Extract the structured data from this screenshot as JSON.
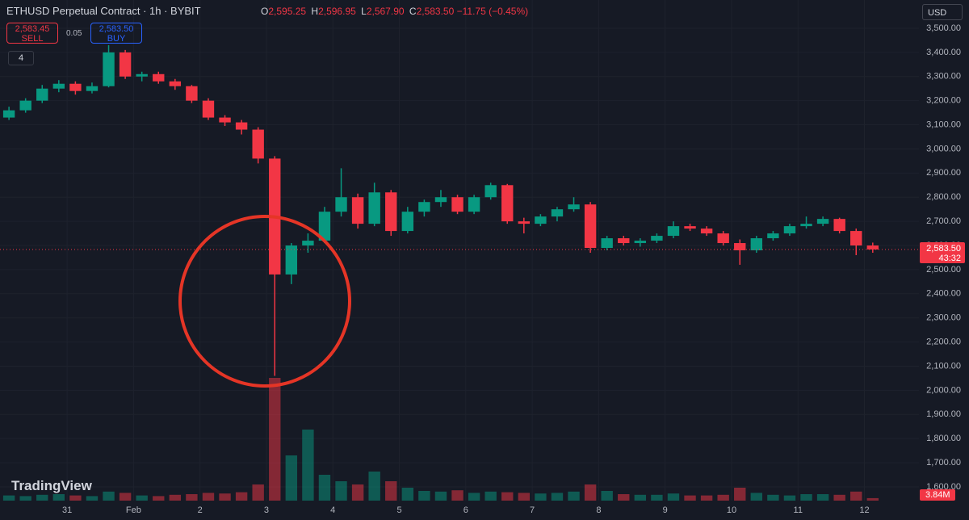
{
  "chart_data": {
    "type": "candlestick",
    "title": "ETHUSD Perpetual Contract · 1h · BYBIT",
    "header": {
      "o": {
        "key": "O",
        "value": "2,595.25"
      },
      "h": {
        "key": "H",
        "value": "2,596.95"
      },
      "l": {
        "key": "L",
        "value": "2,567.90"
      },
      "c": {
        "key": "C",
        "value": "2,583.50"
      },
      "change": "−11.75 (−0.45%)"
    },
    "sell": {
      "price": "2,583.45",
      "label": "SELL"
    },
    "spread": "0.05",
    "buy": {
      "price": "2,583.50",
      "label": "BUY"
    },
    "indicators": "4",
    "currency": "USD",
    "brand": "TradingView",
    "up_color": "#089981",
    "down_color": "#f23645",
    "x": [
      -0.875,
      -0.625,
      -0.375,
      -0.125,
      0.125,
      0.375,
      0.625,
      0.875,
      1.125,
      1.375,
      1.625,
      1.875,
      2.125,
      2.375,
      2.625,
      2.875,
      3.125,
      3.375,
      3.625,
      3.875,
      4.125,
      4.375,
      4.625,
      4.875,
      5.125,
      5.375,
      5.625,
      5.875,
      6.125,
      6.375,
      6.625,
      6.875,
      7.125,
      7.375,
      7.625,
      7.875,
      8.125,
      8.375,
      8.625,
      8.875,
      9.125,
      9.375,
      9.625,
      9.875,
      10.125,
      10.375,
      10.625,
      10.875,
      11.125,
      11.375,
      11.625,
      11.875,
      12.125
    ],
    "ohlc": [
      [
        3130,
        3175,
        3120,
        3160
      ],
      [
        3160,
        3210,
        3150,
        3200
      ],
      [
        3200,
        3265,
        3190,
        3250
      ],
      [
        3250,
        3285,
        3235,
        3270
      ],
      [
        3270,
        3280,
        3225,
        3240
      ],
      [
        3240,
        3275,
        3230,
        3260
      ],
      [
        3260,
        3430,
        3255,
        3400
      ],
      [
        3400,
        3410,
        3290,
        3300
      ],
      [
        3300,
        3320,
        3280,
        3310
      ],
      [
        3310,
        3320,
        3270,
        3280
      ],
      [
        3280,
        3290,
        3245,
        3260
      ],
      [
        3260,
        3265,
        3190,
        3200
      ],
      [
        3200,
        3210,
        3120,
        3130
      ],
      [
        3130,
        3140,
        3095,
        3110
      ],
      [
        3110,
        3120,
        3060,
        3080
      ],
      [
        3080,
        3090,
        2940,
        2960
      ],
      [
        2960,
        2970,
        2060,
        2480
      ],
      [
        2480,
        2610,
        2440,
        2600
      ],
      [
        2600,
        2650,
        2570,
        2620
      ],
      [
        2620,
        2760,
        2610,
        2740
      ],
      [
        2740,
        2920,
        2720,
        2800
      ],
      [
        2800,
        2815,
        2670,
        2690
      ],
      [
        2690,
        2860,
        2680,
        2820
      ],
      [
        2820,
        2830,
        2640,
        2660
      ],
      [
        2660,
        2760,
        2650,
        2740
      ],
      [
        2740,
        2790,
        2720,
        2780
      ],
      [
        2780,
        2830,
        2760,
        2800
      ],
      [
        2800,
        2810,
        2730,
        2740
      ],
      [
        2740,
        2810,
        2730,
        2800
      ],
      [
        2800,
        2860,
        2790,
        2850
      ],
      [
        2850,
        2855,
        2690,
        2700
      ],
      [
        2700,
        2715,
        2650,
        2690
      ],
      [
        2690,
        2730,
        2680,
        2720
      ],
      [
        2720,
        2760,
        2700,
        2750
      ],
      [
        2750,
        2800,
        2740,
        2770
      ],
      [
        2770,
        2780,
        2570,
        2590
      ],
      [
        2590,
        2640,
        2580,
        2630
      ],
      [
        2630,
        2640,
        2600,
        2610
      ],
      [
        2610,
        2630,
        2595,
        2620
      ],
      [
        2620,
        2650,
        2610,
        2640
      ],
      [
        2640,
        2700,
        2630,
        2680
      ],
      [
        2680,
        2690,
        2660,
        2670
      ],
      [
        2670,
        2680,
        2640,
        2650
      ],
      [
        2650,
        2660,
        2600,
        2610
      ],
      [
        2610,
        2625,
        2520,
        2580
      ],
      [
        2580,
        2640,
        2570,
        2630
      ],
      [
        2630,
        2660,
        2620,
        2650
      ],
      [
        2650,
        2690,
        2640,
        2680
      ],
      [
        2680,
        2720,
        2670,
        2690
      ],
      [
        2690,
        2720,
        2680,
        2710
      ],
      [
        2710,
        2715,
        2650,
        2660
      ],
      [
        2660,
        2670,
        2560,
        2600
      ],
      [
        2600,
        2612,
        2570,
        2583.5
      ]
    ],
    "volume": [
      8,
      7,
      9,
      10,
      8,
      7,
      14,
      12,
      8,
      7,
      9,
      10,
      12,
      11,
      13,
      25,
      190,
      70,
      110,
      40,
      30,
      25,
      45,
      30,
      20,
      15,
      14,
      16,
      12,
      14,
      13,
      12,
      11,
      12,
      14,
      25,
      15,
      10,
      9,
      9,
      11,
      8,
      8,
      9,
      20,
      12,
      9,
      8,
      10,
      10,
      9,
      14,
      3.84
    ],
    "volume_label": "3.84M",
    "volume_lim": [
      0,
      200
    ],
    "last_price": {
      "value": 2583.5,
      "label": "2,583.50"
    },
    "countdown": "43:32",
    "xlim": [
      -1.01,
      12.82
    ],
    "xticks": [
      {
        "value": 0,
        "label": "31"
      },
      {
        "value": 1,
        "label": "Feb"
      },
      {
        "value": 2,
        "label": "2"
      },
      {
        "value": 3,
        "label": "3"
      },
      {
        "value": 4,
        "label": "4"
      },
      {
        "value": 5,
        "label": "5"
      },
      {
        "value": 6,
        "label": "6"
      },
      {
        "value": 7,
        "label": "7"
      },
      {
        "value": 8,
        "label": "8"
      },
      {
        "value": 9,
        "label": "9"
      },
      {
        "value": 10,
        "label": "10"
      },
      {
        "value": 11,
        "label": "11"
      },
      {
        "value": 12,
        "label": "12"
      }
    ],
    "ylim": [
      1543,
      3617
    ],
    "yticks": [
      {
        "value": 1600,
        "label": "1,600.00"
      },
      {
        "value": 1700,
        "label": "1,700.00"
      },
      {
        "value": 1800,
        "label": "1,800.00"
      },
      {
        "value": 1900,
        "label": "1,900.00"
      },
      {
        "value": 2000,
        "label": "2,000.00"
      },
      {
        "value": 2100,
        "label": "2,100.00"
      },
      {
        "value": 2200,
        "label": "2,200.00"
      },
      {
        "value": 2300,
        "label": "2,300.00"
      },
      {
        "value": 2400,
        "label": "2,400.00"
      },
      {
        "value": 2500,
        "label": "2,500.00"
      },
      {
        "value": 2600,
        "label": "2,600.00"
      },
      {
        "value": 2700,
        "label": "2,700.00"
      },
      {
        "value": 2800,
        "label": "2,800.00"
      },
      {
        "value": 2900,
        "label": "2,900.00"
      },
      {
        "value": 3000,
        "label": "3,000.00"
      },
      {
        "value": 3100,
        "label": "3,100.00"
      },
      {
        "value": 3200,
        "label": "3,200.00"
      },
      {
        "value": 3300,
        "label": "3,300.00"
      },
      {
        "value": 3400,
        "label": "3,400.00"
      },
      {
        "value": 3500,
        "label": "3,500.00"
      }
    ],
    "grid": true
  }
}
